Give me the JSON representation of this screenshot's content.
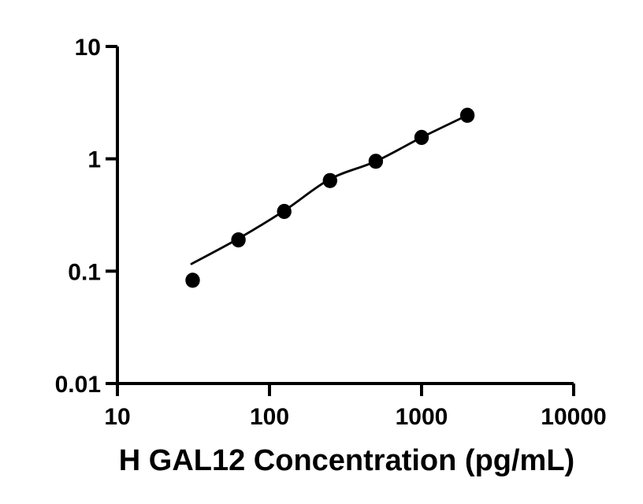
{
  "chart_data": {
    "type": "scatter",
    "title": "",
    "xlabel": "H GAL12 Concentration (pg/mL)",
    "ylabel": "",
    "x_scale": "log",
    "y_scale": "log",
    "xlim": [
      10,
      10000
    ],
    "ylim": [
      0.01,
      10
    ],
    "x_tick_values": [
      10,
      100,
      1000,
      10000
    ],
    "x_tick_labels": [
      "10",
      "100",
      "1000",
      "10000"
    ],
    "y_tick_values": [
      0.01,
      0.1,
      1,
      10
    ],
    "y_tick_labels": [
      "0.01",
      "0.1",
      "1",
      "10"
    ],
    "grid": false,
    "legend": "none",
    "ink_color": "#000000",
    "background_color": "#ffffff",
    "series": [
      {
        "name": "standard-curve-points",
        "marker": "filled-black-circle",
        "x": [
          31.25,
          62.5,
          125,
          250,
          500,
          1000,
          2000
        ],
        "y": [
          0.083,
          0.19,
          0.34,
          0.64,
          0.95,
          1.55,
          2.44
        ]
      }
    ],
    "fit_curve": {
      "name": "standard-curve-fit-line",
      "x": [
        30.7,
        62.5,
        125,
        250,
        500,
        1000,
        2000
      ],
      "y": [
        0.116,
        0.195,
        0.345,
        0.66,
        0.95,
        1.55,
        2.44
      ]
    }
  }
}
